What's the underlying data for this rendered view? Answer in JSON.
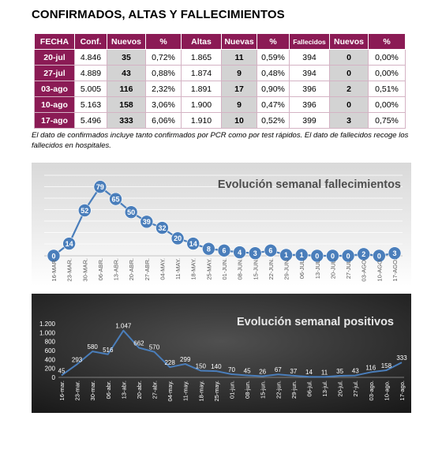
{
  "title": "CONFIRMADOS, ALTAS Y FALLECIMIENTOS",
  "table": {
    "headers": [
      "FECHA",
      "Conf.",
      "Nuevos",
      "%",
      "Altas",
      "Nuevas",
      "%",
      "Fallecidos",
      "Nuevos",
      "%"
    ],
    "rows": [
      [
        "20-jul",
        "4.846",
        "35",
        "0,72%",
        "1.865",
        "11",
        "0,59%",
        "394",
        "0",
        "0,00%"
      ],
      [
        "27-jul",
        "4.889",
        "43",
        "0,88%",
        "1.874",
        "9",
        "0,48%",
        "394",
        "0",
        "0,00%"
      ],
      [
        "03-ago",
        "5.005",
        "116",
        "2,32%",
        "1.891",
        "17",
        "0,90%",
        "396",
        "2",
        "0,51%"
      ],
      [
        "10-ago",
        "5.163",
        "158",
        "3,06%",
        "1.900",
        "9",
        "0,47%",
        "396",
        "0",
        "0,00%"
      ],
      [
        "17-ago",
        "5.496",
        "333",
        "6,06%",
        "1.910",
        "10",
        "0,52%",
        "399",
        "3",
        "0,75%"
      ]
    ]
  },
  "note": "El dato de confirmados incluye tanto confirmados por PCR como por test rápidos. El dato de fallecidos recoge los fallecidos en hospitales.",
  "colors": {
    "header": "#8b1b55",
    "line": "#4a7ebb",
    "marker": "#4a7ebb",
    "dark_bg": "#2a2a2a"
  },
  "chart_data": [
    {
      "type": "line",
      "title": "Evolución semanal fallecimientos",
      "categories": [
        "16-MAR.",
        "23-MAR.",
        "30-MAR.",
        "06-ABR.",
        "13-ABR.",
        "20-ABR.",
        "27-ABR.",
        "04-MAY.",
        "11-MAY.",
        "18-MAY.",
        "25-MAY.",
        "01-JUN.",
        "08-JUN.",
        "15-JUN.",
        "22-JUN.",
        "29-JUN.",
        "06-JUL.",
        "13-JUL.",
        "20-JUL.",
        "27-JUL.",
        "03-AGO.",
        "10-AGO.",
        "17-AGO."
      ],
      "values": [
        0,
        14,
        52,
        79,
        65,
        50,
        39,
        32,
        20,
        14,
        8,
        6,
        4,
        3,
        6,
        1,
        1,
        0,
        0,
        0,
        2,
        0,
        3
      ],
      "ylim": [
        0,
        85
      ],
      "grid": true,
      "legend": "none"
    },
    {
      "type": "line",
      "title": "Evolución semanal positivos",
      "categories": [
        "16-mar.",
        "23-mar.",
        "30-mar.",
        "06-abr.",
        "13-abr.",
        "20-abr.",
        "27-abr.",
        "04-may.",
        "11-may.",
        "18-may.",
        "25-may.",
        "01-jun.",
        "08-jun.",
        "15-jun.",
        "22-jun.",
        "29-jun.",
        "06-jul.",
        "13-jul.",
        "20-jul.",
        "27-jul.",
        "03-ago.",
        "10-ago.",
        "17-ago."
      ],
      "values": [
        45,
        293,
        580,
        516,
        1047,
        662,
        570,
        228,
        299,
        150,
        140,
        70,
        45,
        26,
        67,
        37,
        14,
        11,
        35,
        43,
        116,
        158,
        333
      ],
      "value_labels": [
        "45",
        "293",
        "580",
        "516",
        "1.047",
        "662",
        "570",
        "228",
        "299",
        "150",
        "140",
        "70",
        "45",
        "26",
        "67",
        "37",
        "14",
        "11",
        "35",
        "43",
        "116",
        "158",
        "333"
      ],
      "ylim": [
        0,
        1200
      ],
      "yticks": [
        0,
        200,
        400,
        600,
        800,
        1000,
        1200
      ],
      "ytick_labels": [
        "0",
        "200",
        "400",
        "600",
        "800",
        "1.000",
        "1.200"
      ],
      "grid": false,
      "legend": "none"
    }
  ]
}
